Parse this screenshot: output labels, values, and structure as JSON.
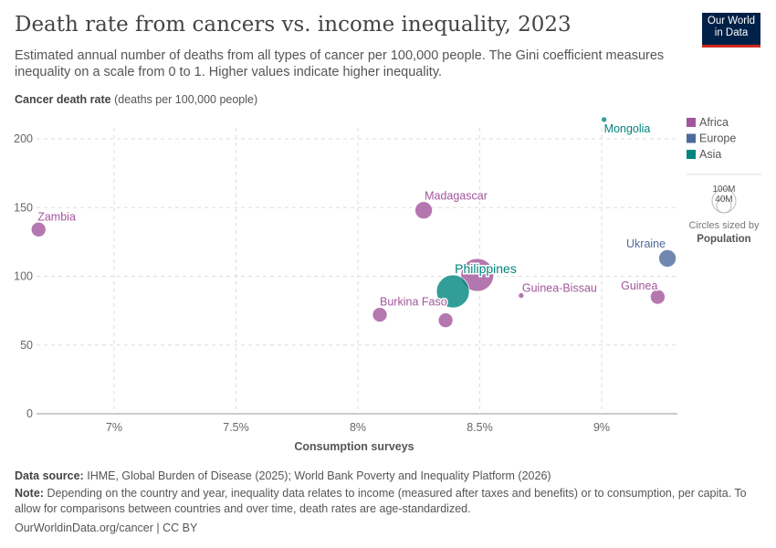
{
  "header": {
    "title": "Death rate from cancers vs. income inequality, 2023",
    "subtitle": "Estimated annual number of deaths from all types of cancer per 100,000 people. The Gini coefficient measures inequality on a scale from 0 to 1. Higher values indicate higher inequality.",
    "logo": "Our World in Data"
  },
  "chart_data": {
    "type": "scatter",
    "ylabel_bold": "Cancer death rate",
    "ylabel_rest": "(deaths per 100,000 people)",
    "xlabel": "Consumption surveys",
    "xlim": [
      6.68,
      9.3
    ],
    "ylim": [
      0,
      215
    ],
    "xticks": [
      7,
      7.5,
      8,
      8.5,
      9
    ],
    "xtick_labels": [
      "7%",
      "7.5%",
      "8%",
      "8.5%",
      "9%"
    ],
    "yticks": [
      0,
      50,
      100,
      150,
      200
    ],
    "ytick_labels": [
      "0",
      "50",
      "100",
      "150",
      "200"
    ],
    "grid": true,
    "legend": {
      "placement": "right",
      "items": [
        {
          "name": "Africa",
          "color": "#a2559c"
        },
        {
          "name": "Europe",
          "color": "#4c6a9c"
        },
        {
          "name": "Asia",
          "color": "#00847e"
        }
      ],
      "size_title": "Circles sized by",
      "size_var": "Population",
      "size_labels": [
        "100M",
        "40M"
      ]
    },
    "points": [
      {
        "label": "Zambia",
        "region": "Africa",
        "x": 6.69,
        "y": 134,
        "size": "small"
      },
      {
        "label": "Madagascar",
        "region": "Africa",
        "x": 8.27,
        "y": 148,
        "size": "medium"
      },
      {
        "label": "Mongolia",
        "region": "Asia",
        "x": 9.01,
        "y": 214,
        "size": "tiny"
      },
      {
        "label": "Ukraine",
        "region": "Europe",
        "x": 9.27,
        "y": 113,
        "size": "medium"
      },
      {
        "label": "Guinea",
        "region": "Africa",
        "x": 9.23,
        "y": 85,
        "size": "small"
      },
      {
        "label": "Guinea-Bissau",
        "region": "Africa",
        "x": 8.67,
        "y": 86,
        "size": "tiny"
      },
      {
        "label": "",
        "region": "Africa",
        "x": 8.49,
        "y": 101,
        "size": "large"
      },
      {
        "label": "Philippines",
        "region": "Asia",
        "x": 8.39,
        "y": 89,
        "size": "large"
      },
      {
        "label": "Burkina Faso",
        "region": "Africa",
        "x": 8.09,
        "y": 72,
        "size": "small"
      },
      {
        "label": "",
        "region": "Africa",
        "x": 8.36,
        "y": 68,
        "size": "small"
      }
    ]
  },
  "footer": {
    "source_label": "Data source:",
    "source": "IHME, Global Burden of Disease (2025); World Bank Poverty and Inequality Platform (2026)",
    "note_label": "Note:",
    "note": "Depending on the country and year, inequality data relates to income (measured after taxes and benefits) or to consumption, per capita. To allow for comparisons between countries and over time, death rates are age-standardized.",
    "url": "OurWorldinData.org/cancer | CC BY"
  }
}
